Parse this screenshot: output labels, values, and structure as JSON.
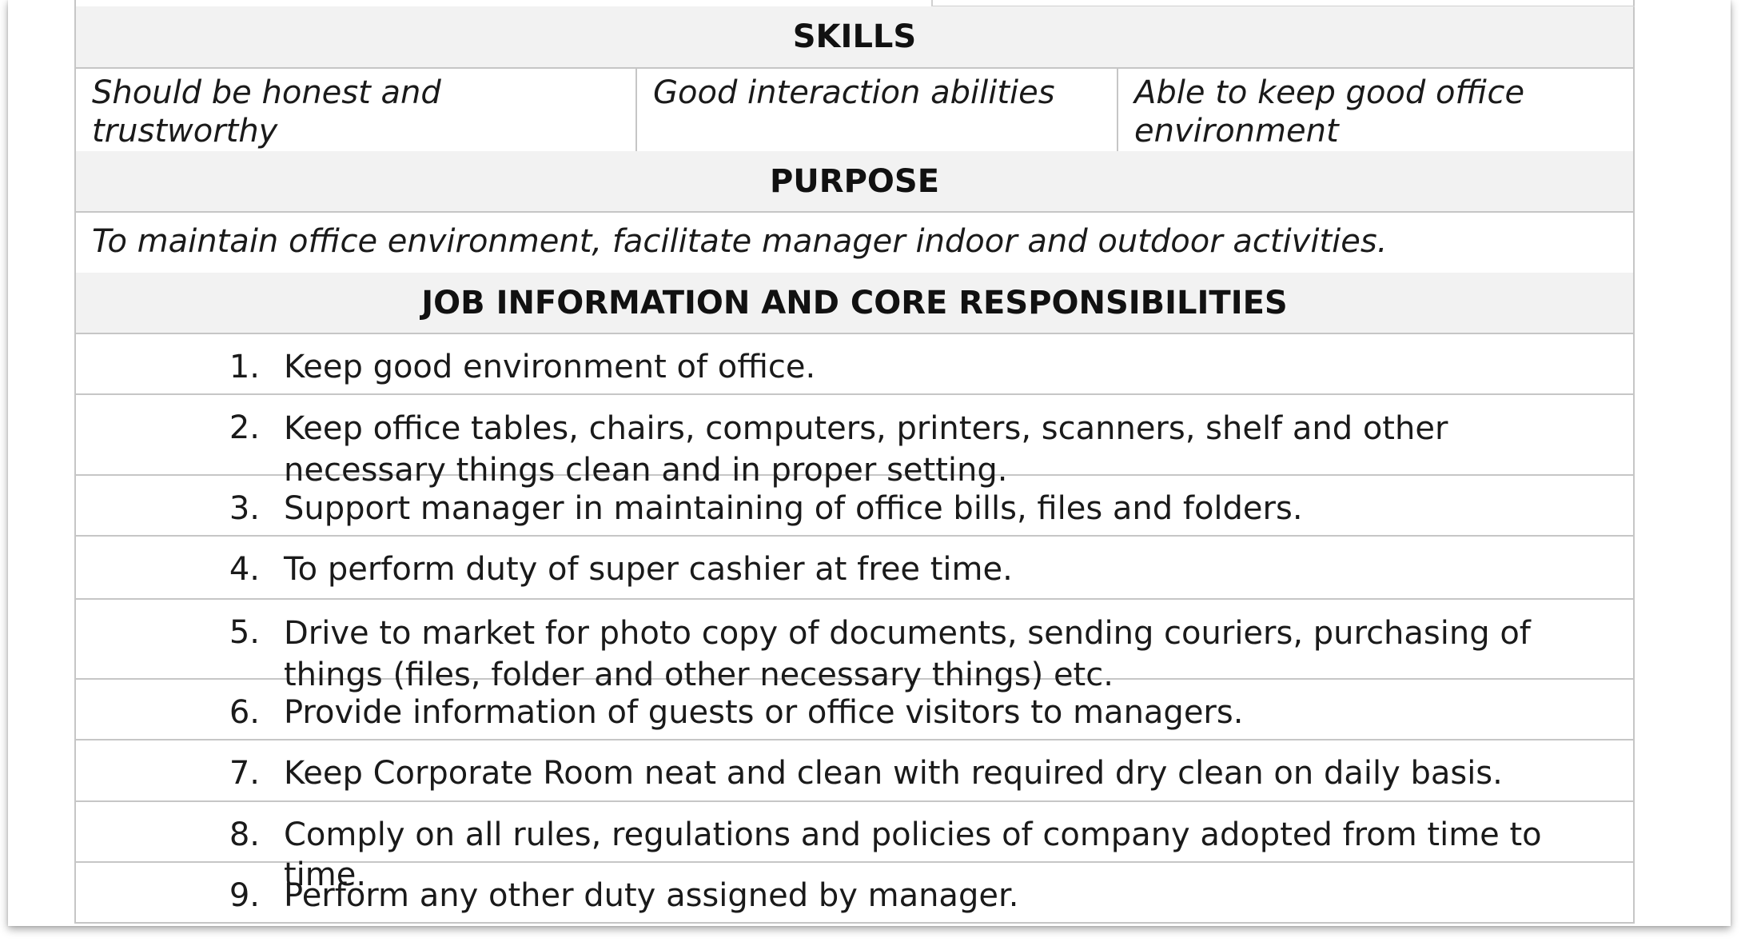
{
  "skills": {
    "heading": "SKILLS",
    "items": [
      "Should be honest and trustworthy",
      "Good interaction abilities",
      "Able to keep good office environment"
    ]
  },
  "purpose": {
    "heading": "PURPOSE",
    "text": "To maintain office environment, facilitate manager indoor and outdoor activities."
  },
  "responsibilities": {
    "heading": "JOB INFORMATION AND CORE RESPONSIBILITIES",
    "items": [
      {
        "number": "1.",
        "text": "Keep good environment of office."
      },
      {
        "number": "2.",
        "text": "Keep office tables, chairs, computers, printers, scanners, shelf and other necessary things clean and in proper setting."
      },
      {
        "number": "3.",
        "text": "Support manager in maintaining of office bills, files and folders."
      },
      {
        "number": "4.",
        "text": "To perform duty of super cashier at free time."
      },
      {
        "number": "5.",
        "text": "Drive to market for photo copy of documents, sending couriers, purchasing of things (files, folder and other necessary things) etc."
      },
      {
        "number": "6.",
        "text": "Provide information of guests or office visitors to managers."
      },
      {
        "number": "7.",
        "text": "Keep Corporate Room neat and clean with required dry clean on daily basis."
      },
      {
        "number": "8.",
        "text": "Comply on all rules, regulations and policies of company adopted from time to time."
      },
      {
        "number": "9.",
        "text": "Perform any other duty assigned by manager."
      }
    ]
  }
}
